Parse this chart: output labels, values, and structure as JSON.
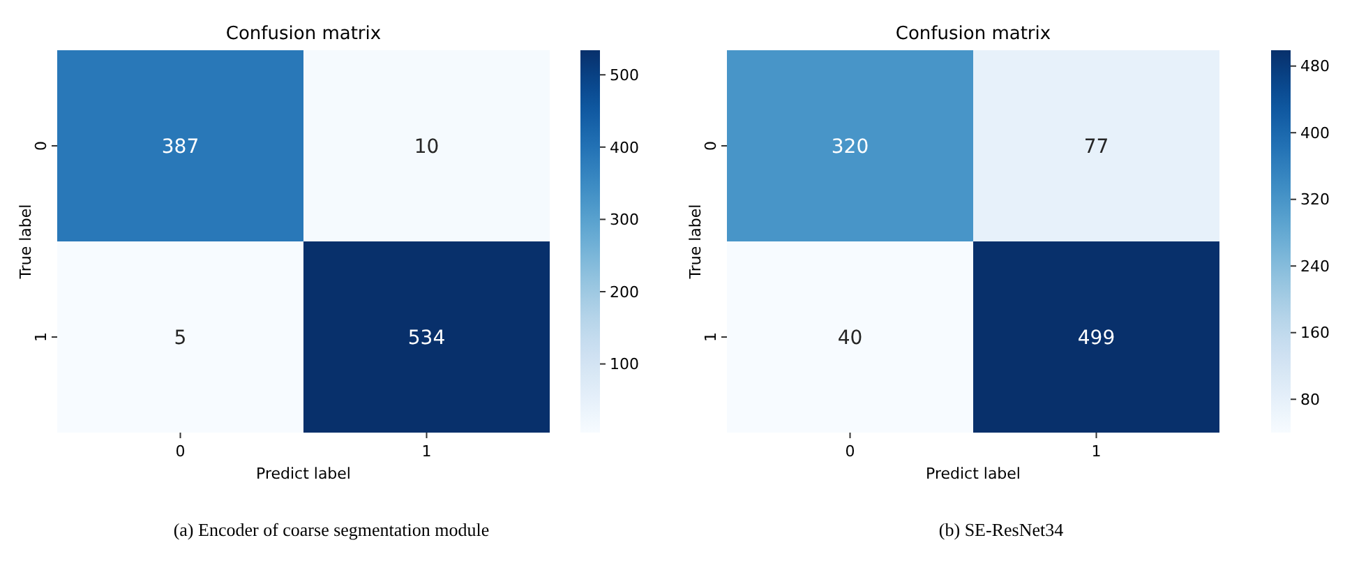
{
  "chart_data": [
    {
      "type": "heatmap",
      "title": "Confusion matrix",
      "xlabel": "Predict label",
      "ylabel": "True label",
      "categories": [
        "0",
        "1"
      ],
      "y_categories": [
        "0",
        "1"
      ],
      "cells": [
        [
          387,
          10
        ],
        [
          5,
          534
        ]
      ],
      "data_labels": true,
      "clim": [
        5,
        534
      ],
      "cticks": [
        100,
        200,
        300,
        400,
        500
      ],
      "annotations": [
        "(a) Encoder of coarse segmentation module"
      ]
    },
    {
      "type": "heatmap",
      "title": "Confusion matrix",
      "xlabel": "Predict label",
      "ylabel": "True label",
      "categories": [
        "0",
        "1"
      ],
      "y_categories": [
        "0",
        "1"
      ],
      "cells": [
        [
          320,
          77
        ],
        [
          40,
          499
        ]
      ],
      "data_labels": true,
      "clim": [
        40,
        499
      ],
      "cticks": [
        80,
        160,
        240,
        320,
        400,
        480
      ],
      "annotations": [
        "(b) SE-ResNet34"
      ]
    }
  ]
}
